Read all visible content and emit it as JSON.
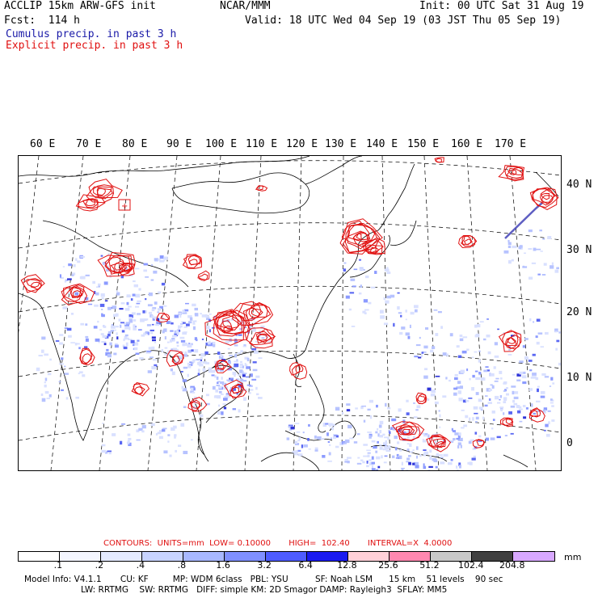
{
  "header": {
    "title_left": "ACCLIP 15km ARW-GFS init",
    "forecast": "Fcst:  114 h",
    "source": "NCAR/MMM",
    "init": "Init: 00 UTC Sat 31 Aug 19",
    "valid": "Valid: 18 UTC Wed 04 Sep 19 (03 JST Thu 05 Sep 19)",
    "cumulus_label": "Cumulus precip. in past 3 h",
    "explicit_label": "Explicit precip. in past 3 h"
  },
  "colors": {
    "cumulus": "#1a1aa8",
    "explicit": "#e01010",
    "coast": "#000000"
  },
  "map": {
    "lon_labels": [
      "60 E",
      "70 E",
      "80 E",
      "90 E",
      "100 E",
      "110 E",
      "120 E",
      "130 E",
      "140 E",
      "150 E",
      "160 E",
      "170 E"
    ],
    "lat_labels": [
      "40 N",
      "30 N",
      "20 N",
      "10 N",
      "0"
    ]
  },
  "contours": {
    "text": "CONTOURS:  UNITS=mm  LOW= 0.10000       HIGH=  102.40       INTERVAL=X  4.0000"
  },
  "legend": {
    "unit": "mm",
    "ticks": [
      ".1",
      ".2",
      ".4",
      ".8",
      "1.6",
      "3.2",
      "6.4",
      "12.8",
      "25.6",
      "51.2",
      "102.4",
      "204.8"
    ],
    "colors": [
      "#ffffff",
      "#f4f6ff",
      "#e4eaff",
      "#c8d4ff",
      "#a8b8ff",
      "#8090ff",
      "#4e5cff",
      "#1a1af0",
      "#ffd0d8",
      "#ff88b0",
      "#c8c8c8",
      "#404040",
      "#d8a8ff"
    ]
  },
  "model_info": {
    "line1": "Model Info: V4.1.1       CU: KF         MP: WDM 6class   PBL: YSU          SF: Noah LSM      15 km    51 levels    90 sec",
    "line2": "LW: RRTMG    SW: RRTMG   DIFF: simple KM: 2D Smagor DAMP: Rayleigh3  SFLAY: MM5"
  }
}
